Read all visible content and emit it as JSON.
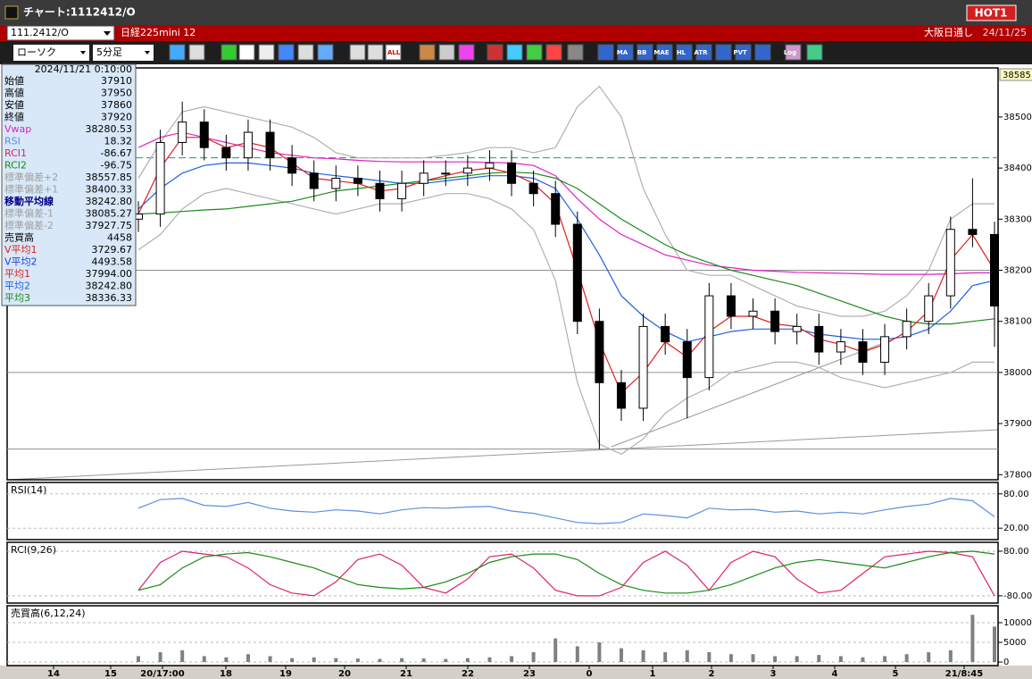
{
  "window": {
    "title": "チャート:1112412/O",
    "badge": "HOT1"
  },
  "header": {
    "symbol": "111.2412/O",
    "name": "日経225mini 12",
    "market": "大阪日通し",
    "date": "24/11/25"
  },
  "toolbar": {
    "chart_type": "ローソク",
    "interval": "5分足",
    "icon_labels": [
      "ALL",
      "MA",
      "BB",
      "MAE",
      "HL",
      "ATR",
      "PVT",
      "Log"
    ]
  },
  "info_panel": {
    "timestamp": "2024/11/21 0:10:00",
    "rows": [
      {
        "label": "始値",
        "value": "37910",
        "color": "#000000"
      },
      {
        "label": "高値",
        "value": "37950",
        "color": "#000000"
      },
      {
        "label": "安値",
        "value": "37860",
        "color": "#000000"
      },
      {
        "label": "終値",
        "value": "37920",
        "color": "#000000"
      },
      {
        "label": "Vwap",
        "value": "38280.53",
        "color": "#e020c0"
      },
      {
        "label": "RSI",
        "value": "18.32",
        "color": "#5a8fe0"
      },
      {
        "label": "RCI1",
        "value": "-86.67",
        "color": "#e0206c"
      },
      {
        "label": "RCI2",
        "value": "-96.75",
        "color": "#1a8a1a"
      },
      {
        "label": "標準偏差+2",
        "value": "38557.85",
        "color": "#a0a0a0"
      },
      {
        "label": "標準偏差+1",
        "value": "38400.33",
        "color": "#a0a0a0"
      },
      {
        "label": "移動平均線",
        "value": "38242.80",
        "color": "#000080"
      },
      {
        "label": "標準偏差-1",
        "value": "38085.27",
        "color": "#a0a0a0"
      },
      {
        "label": "標準偏差-2",
        "value": "37927.75",
        "color": "#a0a0a0"
      },
      {
        "label": "売買高",
        "value": "4458",
        "color": "#000000"
      },
      {
        "label": "V平均1",
        "value": "3729.67",
        "color": "#e02020"
      },
      {
        "label": "V平均2",
        "value": "4493.58",
        "color": "#2040e0"
      },
      {
        "label": "平均1",
        "value": "37994.00",
        "color": "#e02020"
      },
      {
        "label": "平均2",
        "value": "38242.80",
        "color": "#2060e0"
      },
      {
        "label": "平均3",
        "value": "38336.33",
        "color": "#1a8a1a"
      }
    ]
  },
  "x_labels": [
    "14",
    "15",
    "20/17:00",
    "18",
    "19",
    "20",
    "21",
    "22",
    "23",
    "0",
    "1",
    "2",
    "3",
    "4",
    "5",
    "21/8:45"
  ],
  "chart_data": [
    {
      "type": "candlestick",
      "ylim": [
        37790,
        38596
      ],
      "yticks": [
        37800,
        37900,
        38000,
        38100,
        38200,
        38300,
        38400,
        38500
      ],
      "axis_top": 38585,
      "hlines": [
        {
          "value": 38420,
          "color": "#2e8b8b",
          "dashed": true
        },
        {
          "value": 38200,
          "color": "#909090",
          "dashed": false
        },
        {
          "value": 38000,
          "color": "#909090",
          "dashed": false
        },
        {
          "value": 37850,
          "color": "#909090",
          "dashed": false
        }
      ],
      "open": [
        38300,
        38310,
        38450,
        38490,
        38440,
        38420,
        38470,
        38420,
        38390,
        38360,
        38380,
        38370,
        38340,
        38370,
        38390,
        38390,
        38400,
        38410,
        38370,
        38350,
        38290,
        38100,
        37980,
        37930,
        38090,
        38060,
        37990,
        38150,
        38110,
        38120,
        38080,
        38090,
        38040,
        38060,
        38020,
        38070,
        38100,
        38150,
        38280,
        38270
      ],
      "high": [
        38335,
        38475,
        38530,
        38515,
        38465,
        38495,
        38495,
        38445,
        38415,
        38405,
        38405,
        38395,
        38395,
        38415,
        38415,
        38425,
        38435,
        38435,
        38395,
        38375,
        38315,
        38125,
        38005,
        38115,
        38115,
        38085,
        38175,
        38175,
        38145,
        38145,
        38115,
        38115,
        38085,
        38085,
        38095,
        38125,
        38175,
        38305,
        38380,
        38295
      ],
      "low": [
        38275,
        38285,
        38425,
        38415,
        38395,
        38395,
        38395,
        38365,
        38335,
        38335,
        38345,
        38315,
        38315,
        38345,
        38365,
        38365,
        38375,
        38345,
        38325,
        38265,
        38075,
        37850,
        37905,
        37905,
        38035,
        37910,
        37965,
        38085,
        38085,
        38055,
        38055,
        38015,
        38015,
        37995,
        37995,
        38045,
        38075,
        38125,
        38245,
        38050
      ],
      "close": [
        38310,
        38450,
        38490,
        38440,
        38420,
        38470,
        38420,
        38390,
        38360,
        38380,
        38370,
        38340,
        38370,
        38390,
        38390,
        38400,
        38410,
        38370,
        38350,
        38290,
        38100,
        37980,
        37930,
        38090,
        38060,
        37990,
        38150,
        38110,
        38120,
        38080,
        38090,
        38040,
        38060,
        38020,
        38070,
        38100,
        38150,
        38280,
        38270,
        38130
      ],
      "lines": [
        {
          "color": "#b0b0b0",
          "values": [
            38380,
            38450,
            38510,
            38520,
            38510,
            38500,
            38490,
            38480,
            38460,
            38430,
            38420,
            38420,
            38420,
            38420,
            38425,
            38430,
            38440,
            38440,
            38430,
            38440,
            38520,
            38560,
            38500,
            38360,
            38270,
            38200,
            38190,
            38190,
            38170,
            38150,
            38130,
            38120,
            38110,
            38110,
            38120,
            38150,
            38200,
            38300,
            38330,
            38330
          ]
        },
        {
          "color": "#b0b0b0",
          "values": [
            38240,
            38270,
            38320,
            38350,
            38360,
            38350,
            38340,
            38330,
            38320,
            38310,
            38320,
            38330,
            38330,
            38340,
            38350,
            38350,
            38340,
            38320,
            38280,
            38180,
            37980,
            37860,
            37840,
            37870,
            37920,
            37950,
            37970,
            38000,
            38010,
            38020,
            38020,
            38010,
            37990,
            37980,
            37970,
            37980,
            37990,
            38000,
            38020,
            38020
          ]
        },
        {
          "color": "#e020c0",
          "values": [
            38440,
            38460,
            38470,
            38460,
            38450,
            38440,
            38430,
            38425,
            38420,
            38418,
            38415,
            38413,
            38412,
            38412,
            38412,
            38412,
            38411,
            38410,
            38405,
            38385,
            38340,
            38300,
            38270,
            38250,
            38230,
            38220,
            38210,
            38205,
            38200,
            38198,
            38196,
            38195,
            38194,
            38193,
            38192,
            38192,
            38192,
            38193,
            38195,
            38195
          ]
        },
        {
          "color": "#1a8a1a",
          "values": [
            38310,
            38312,
            38315,
            38318,
            38320,
            38325,
            38330,
            38335,
            38345,
            38355,
            38360,
            38365,
            38370,
            38375,
            38380,
            38385,
            38390,
            38392,
            38390,
            38380,
            38360,
            38330,
            38300,
            38275,
            38250,
            38230,
            38215,
            38200,
            38190,
            38180,
            38170,
            38155,
            38140,
            38125,
            38110,
            38100,
            38095,
            38095,
            38100,
            38105
          ]
        },
        {
          "color": "#2060e0",
          "values": [
            38320,
            38360,
            38390,
            38405,
            38410,
            38410,
            38405,
            38400,
            38390,
            38385,
            38380,
            38375,
            38370,
            38370,
            38375,
            38380,
            38385,
            38385,
            38380,
            38360,
            38300,
            38230,
            38150,
            38110,
            38080,
            38060,
            38070,
            38080,
            38085,
            38085,
            38085,
            38075,
            38070,
            38065,
            38065,
            38070,
            38085,
            38120,
            38170,
            38180
          ]
        },
        {
          "color": "#e02020",
          "values": [
            38310,
            38400,
            38460,
            38460,
            38440,
            38450,
            38440,
            38410,
            38380,
            38375,
            38370,
            38355,
            38360,
            38375,
            38385,
            38395,
            38400,
            38390,
            38370,
            38330,
            38200,
            38060,
            37960,
            38000,
            38060,
            38030,
            38080,
            38110,
            38110,
            38095,
            38090,
            38065,
            38055,
            38040,
            38055,
            38080,
            38120,
            38220,
            38270,
            38200
          ]
        }
      ]
    },
    {
      "type": "line",
      "label": "RSI(14)",
      "ylim": [
        0,
        100
      ],
      "yticks": [
        {
          "value": 80,
          "label": "80.00"
        },
        {
          "value": 20,
          "label": "20.00"
        }
      ],
      "lines": [
        {
          "color": "#5a8fe0",
          "values": [
            55,
            70,
            72,
            60,
            58,
            65,
            55,
            50,
            48,
            52,
            50,
            45,
            52,
            56,
            55,
            57,
            58,
            50,
            46,
            38,
            30,
            28,
            30,
            45,
            42,
            38,
            55,
            52,
            53,
            48,
            50,
            45,
            48,
            45,
            52,
            58,
            62,
            72,
            68,
            40
          ]
        }
      ]
    },
    {
      "type": "line",
      "label": "RCI(9,26)",
      "ylim": [
        -106,
        112
      ],
      "yticks": [
        {
          "value": 80,
          "label": "80.00"
        },
        {
          "value": -80,
          "label": "-80.00"
        }
      ],
      "lines": [
        {
          "color": "#e0206c",
          "values": [
            -60,
            40,
            80,
            70,
            60,
            20,
            -40,
            -70,
            -80,
            -30,
            50,
            70,
            30,
            -50,
            -70,
            -20,
            60,
            70,
            20,
            -60,
            -80,
            -80,
            -50,
            40,
            80,
            30,
            -60,
            40,
            80,
            60,
            -20,
            -70,
            -60,
            0,
            60,
            70,
            80,
            75,
            60,
            -80
          ]
        },
        {
          "color": "#1a8a1a",
          "values": [
            -60,
            -40,
            20,
            60,
            70,
            75,
            60,
            40,
            20,
            -10,
            -40,
            -50,
            -55,
            -50,
            -30,
            0,
            40,
            60,
            70,
            70,
            50,
            0,
            -40,
            -60,
            -70,
            -70,
            -60,
            -40,
            -10,
            20,
            40,
            50,
            40,
            30,
            20,
            40,
            60,
            75,
            80,
            70
          ]
        }
      ]
    },
    {
      "type": "bar",
      "label": "売買高(6,12,24)",
      "ylim": [
        -900,
        14300
      ],
      "yticks": [
        0,
        5000,
        10000
      ],
      "color": "#808080",
      "values": [
        1500,
        2500,
        3000,
        1500,
        1200,
        2000,
        1500,
        1000,
        1200,
        1000,
        900,
        800,
        1000,
        900,
        800,
        1000,
        1200,
        1500,
        2500,
        6000,
        4000,
        5000,
        3500,
        3000,
        2500,
        3000,
        2500,
        2000,
        2000,
        1500,
        1500,
        1800,
        1500,
        1200,
        1500,
        2000,
        2500,
        3000,
        12000,
        9000
      ]
    }
  ]
}
